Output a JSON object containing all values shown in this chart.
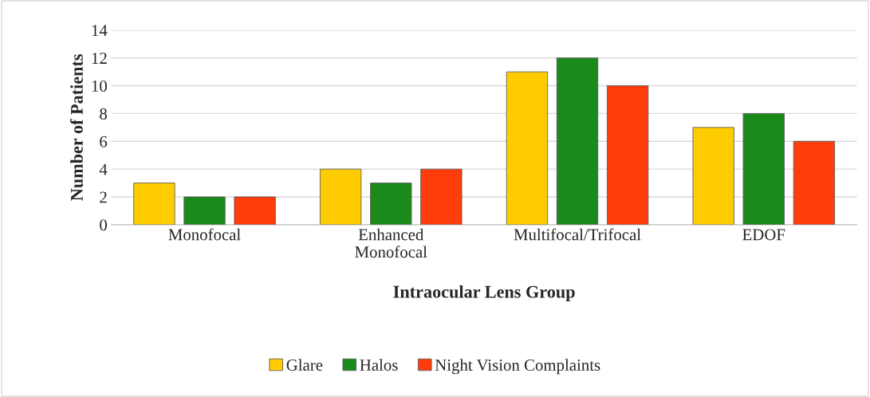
{
  "chart_data": {
    "type": "bar",
    "xlabel": "Intraocular Lens Group",
    "ylabel": "Number of Patients",
    "categories": [
      "Monofocal",
      "Enhanced\nMonofocal",
      "Multifocal/Trifocal",
      "EDOF"
    ],
    "series": [
      {
        "name": "Glare",
        "color": "#ffcc00",
        "values": [
          3,
          4,
          11,
          7
        ]
      },
      {
        "name": "Halos",
        "color": "#1a8a1a",
        "values": [
          2,
          3,
          12,
          8
        ]
      },
      {
        "name": "Night Vision Complaints",
        "color": "#ff3d0a",
        "values": [
          2,
          4,
          10,
          6
        ]
      }
    ],
    "ylim": [
      0,
      14
    ],
    "yticks": [
      0,
      2,
      4,
      6,
      8,
      10,
      12,
      14
    ],
    "grid": "y",
    "legend": "bottom"
  }
}
